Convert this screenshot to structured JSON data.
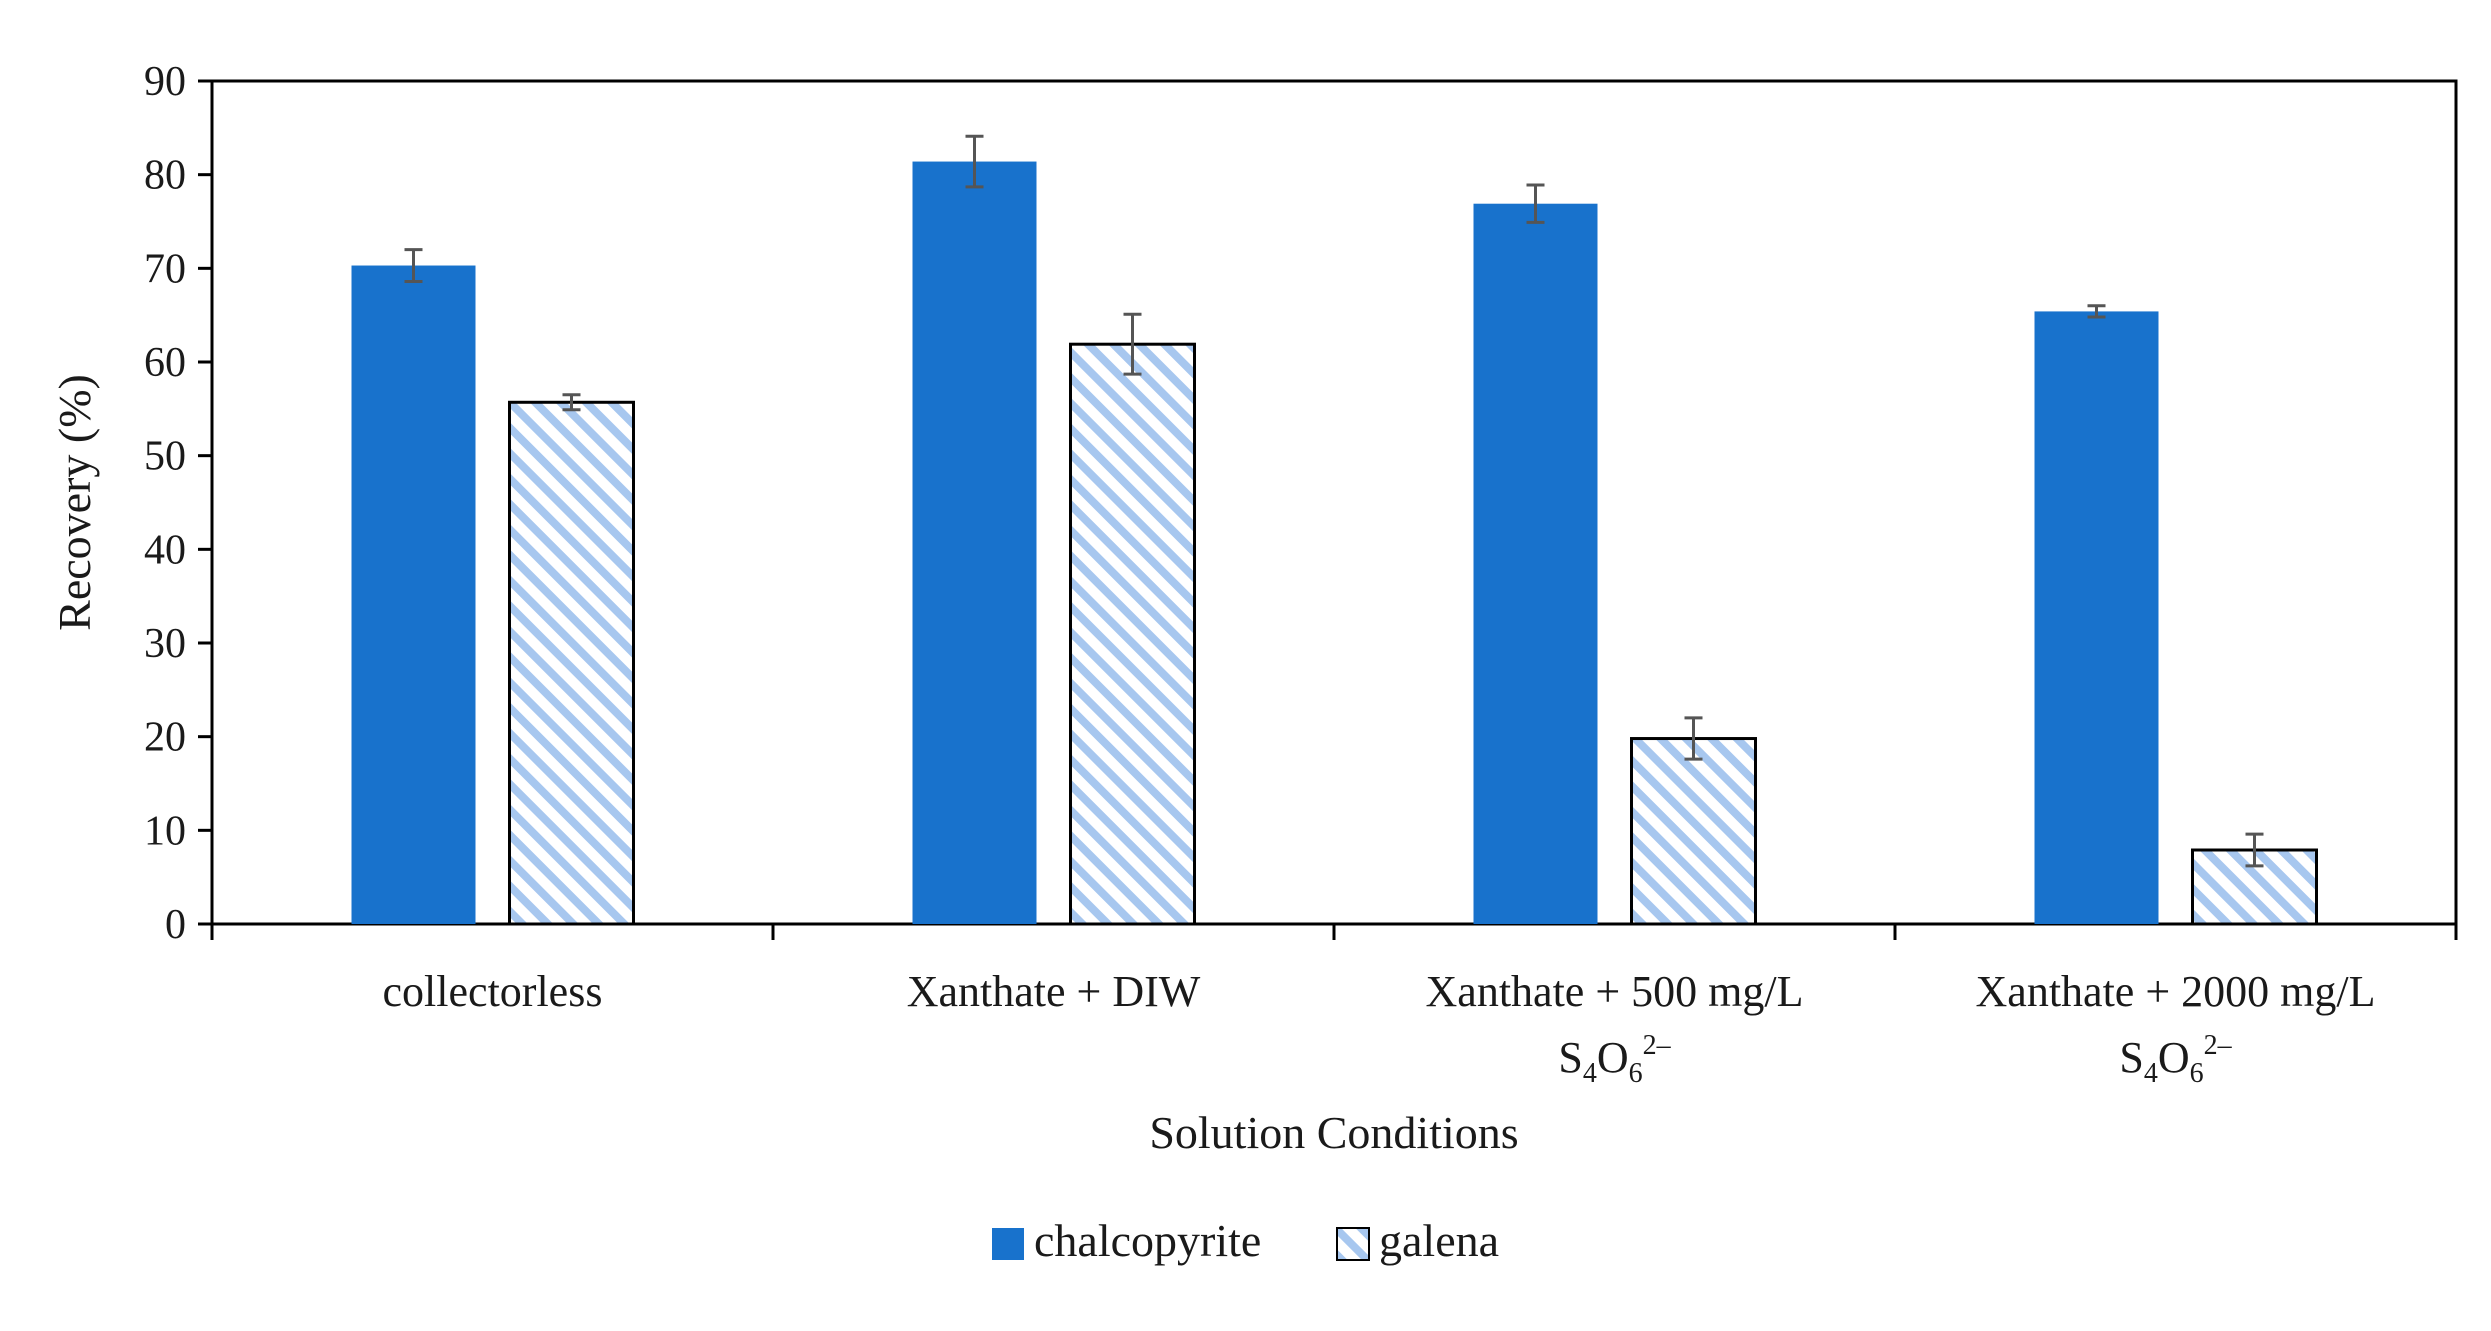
{
  "chart_data": {
    "type": "bar",
    "title": "",
    "xlabel": "Solution Conditions",
    "ylabel": "Recovery (%)",
    "ylim": [
      0,
      90
    ],
    "yticks": [
      0,
      10,
      20,
      30,
      40,
      50,
      60,
      70,
      80,
      90
    ],
    "grid": false,
    "legend_position": "bottom-center",
    "categories": [
      {
        "line1": "collectorless",
        "line2": null
      },
      {
        "line1": "Xanthate + DIW",
        "line2": null
      },
      {
        "line1": "Xanthate + 500 mg/L",
        "line2": {
          "base": "S",
          "sub1": "4",
          "mid": "O",
          "sub2": "6",
          "sup": "2–"
        }
      },
      {
        "line1": "Xanthate + 2000 mg/L",
        "line2": {
          "base": "S",
          "sub1": "4",
          "mid": "O",
          "sub2": "6",
          "sup": "2–"
        }
      }
    ],
    "series": [
      {
        "name": "chalcopyrite",
        "pattern": "solid",
        "color": "#1872cc",
        "values": [
          70.3,
          81.4,
          76.9,
          65.4
        ],
        "errors": [
          1.7,
          2.7,
          2.0,
          0.6
        ]
      },
      {
        "name": "galena",
        "pattern": "hatch",
        "color": "#a7c7ef",
        "values": [
          55.7,
          61.9,
          19.8,
          7.9
        ],
        "errors": [
          0.8,
          3.2,
          2.2,
          1.7
        ]
      }
    ]
  }
}
